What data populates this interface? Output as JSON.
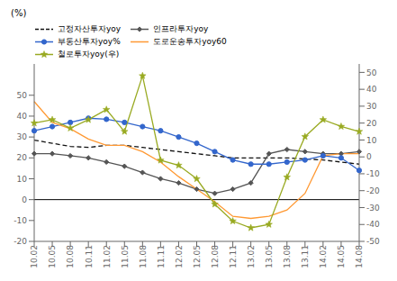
{
  "chart_data": {
    "type": "line",
    "y_label": "(%)",
    "categories": [
      "10.02",
      "10.05",
      "10.08",
      "10.11",
      "11.02",
      "11.05",
      "11.08",
      "11.11",
      "12.02",
      "12.05",
      "12.08",
      "12.11",
      "13.02",
      "13.05",
      "13.08",
      "13.11",
      "14.02",
      "14.05",
      "14.08"
    ],
    "series": [
      {
        "name": "고정자산투자yoy",
        "color": "#111111",
        "line_style": "dashed",
        "marker": "none",
        "values": [
          28.5,
          27,
          25.5,
          25,
          26,
          26,
          25,
          24,
          23,
          22,
          21,
          20,
          20,
          20,
          20,
          19.5,
          19,
          18,
          17
        ]
      },
      {
        "name": "인프라투자yoy",
        "color": "#555555",
        "line_style": "solid",
        "marker": "diamond",
        "values": [
          22,
          22,
          21,
          20,
          18,
          16,
          13,
          10,
          8,
          5,
          3,
          5,
          8,
          22,
          24,
          23,
          22,
          22,
          23
        ]
      },
      {
        "name": "부동산투자yoy%",
        "color": "#3366cc",
        "line_style": "solid",
        "marker": "circle",
        "values": [
          33,
          35,
          37,
          39,
          38.5,
          37,
          35,
          33,
          30,
          27,
          23,
          19,
          17,
          17,
          18,
          19,
          21,
          20,
          14
        ]
      },
      {
        "name": "도로운송투자yoy60",
        "color": "#ff9933",
        "line_style": "solid",
        "marker": "none",
        "values": [
          47,
          37,
          34,
          29,
          26,
          26,
          23,
          18,
          11,
          5,
          -1,
          -8,
          -9,
          -8,
          -5,
          3,
          21,
          22,
          22
        ]
      },
      {
        "name": "철로투자yoy(우)",
        "color": "#99aa22",
        "line_style": "solid",
        "marker": "star",
        "axis": "y2",
        "values": [
          20,
          22,
          17,
          22,
          28,
          15,
          48,
          -2,
          -5,
          -13,
          -28,
          -38,
          -42,
          -40,
          -12,
          12,
          22,
          18,
          15
        ]
      }
    ],
    "ylim": [
      -20,
      65
    ],
    "yticks": [
      50,
      40,
      30,
      20,
      10,
      0,
      -10,
      -20
    ],
    "y2lim": [
      -50,
      55
    ],
    "y2ticks": [
      50,
      40,
      30,
      20,
      10,
      0,
      -10,
      -20,
      -30,
      -40,
      -50
    ],
    "reference_lines": [
      {
        "y": 0,
        "color": "#000000"
      }
    ],
    "grid": false,
    "legend": "upper left"
  }
}
